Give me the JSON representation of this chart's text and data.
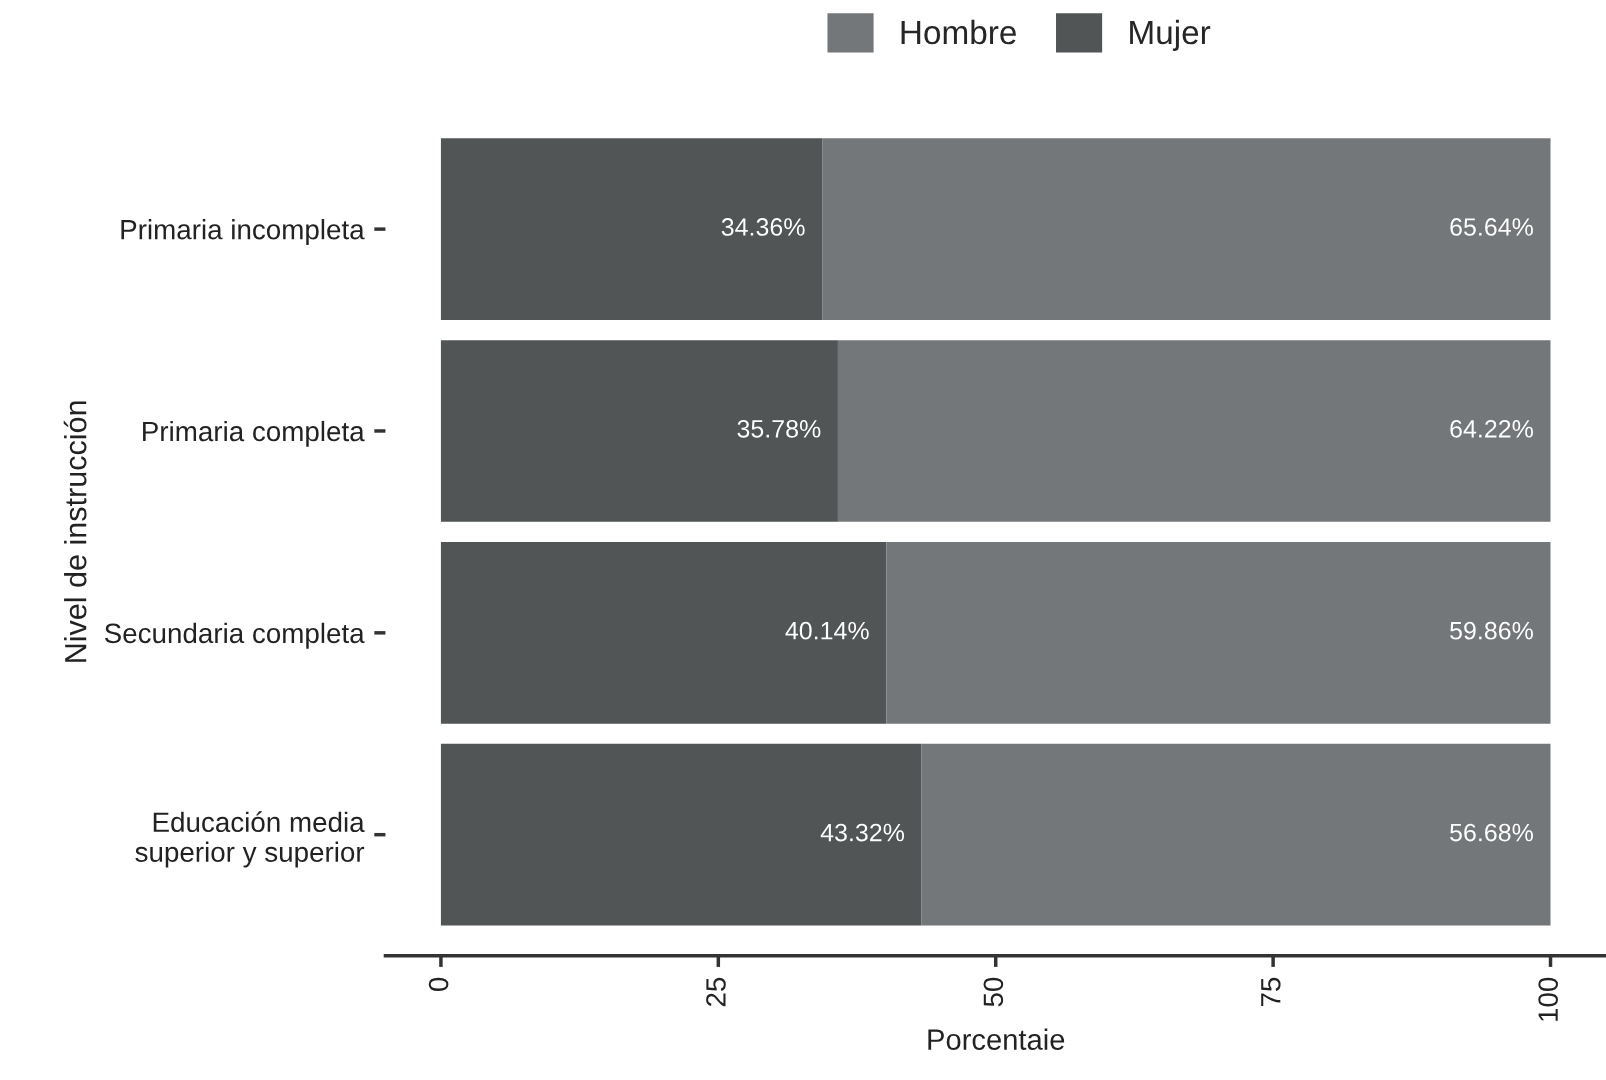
{
  "chart_data": {
    "type": "bar",
    "orientation": "horizontal",
    "stacked": true,
    "xlabel": "Porcentaie",
    "ylabel": "Nivel de instrucción",
    "categories": [
      "Primaria incompleta",
      "Primaria completa",
      "Secundaria completa",
      "Educación media\nsuperior y superior"
    ],
    "series": [
      {
        "name": "Mujer",
        "color": "#515556",
        "values": [
          34.36,
          35.78,
          40.14,
          43.32
        ],
        "value_labels": [
          "34.36%",
          "35.78%",
          "40.14%",
          "43.32%"
        ]
      },
      {
        "name": "Hombre",
        "color": "#747779",
        "values": [
          65.64,
          64.22,
          59.86,
          56.68
        ],
        "value_labels": [
          "65.64%",
          "64.22%",
          "59.86%",
          "56.68%"
        ]
      }
    ],
    "xlim": [
      -5,
      105
    ],
    "xticks": [
      0,
      25,
      50,
      75,
      100
    ],
    "grid": false,
    "legend": "top"
  }
}
